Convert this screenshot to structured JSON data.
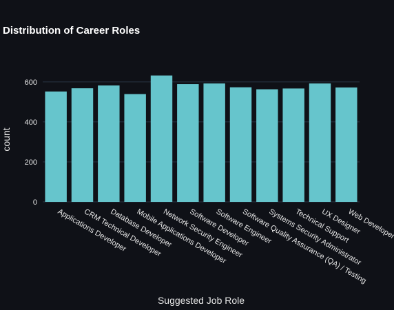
{
  "chart_data": {
    "type": "bar",
    "title": "Distribution of Career Roles",
    "xlabel": "Suggested Job Role",
    "ylabel": "count",
    "categories": [
      "Applications Developer",
      "CRM Technical Developer",
      "Database Developer",
      "Mobile Applications Developer",
      "Network Security Engineer",
      "Software Developer",
      "Software Engineer",
      "Software Quality Assurance (QA) / Testing",
      "Systems Security Administrator",
      "Technical Support",
      "UX Designer",
      "Web Developer"
    ],
    "values": [
      552,
      568,
      582,
      539,
      632,
      589,
      592,
      573,
      563,
      567,
      592,
      572
    ],
    "ylim": [
      0,
      665
    ],
    "yticks": [
      0,
      200,
      400,
      600
    ],
    "grid": true,
    "bar_color": "#66c5cc",
    "background": "#0f1117"
  }
}
